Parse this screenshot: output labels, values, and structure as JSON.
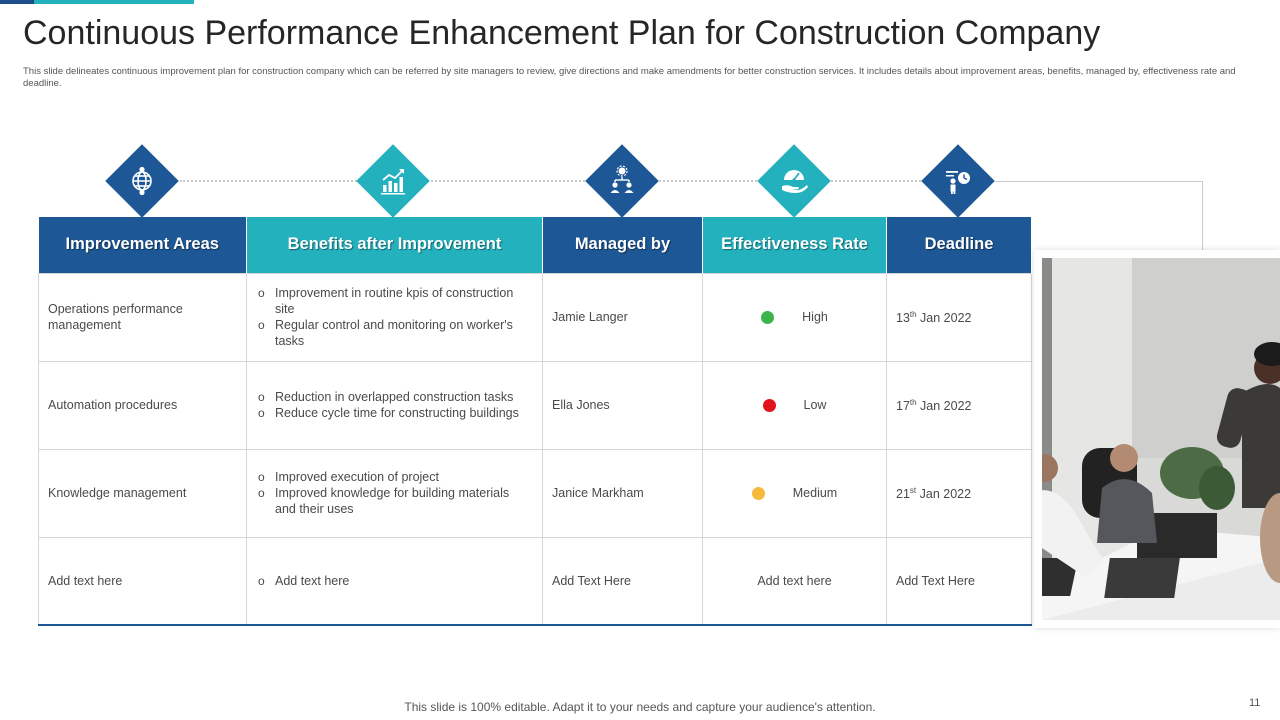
{
  "slide": {
    "title": "Continuous Performance Enhancement Plan for Construction Company",
    "subtitle": "This slide delineates continuous improvement plan for construction company which can be referred by site managers to review, give directions and make amendments  for better construction services. It includes details about improvement areas, benefits, managed by, effectiveness rate and deadline.",
    "footer": "This slide is 100% editable. Adapt it to your needs and capture your audience's attention.",
    "page_number": "11"
  },
  "icons": [
    "globe-icon",
    "growth-chart-icon",
    "team-hierarchy-icon",
    "gauge-hand-icon",
    "presenter-clock-icon"
  ],
  "colors": {
    "dark_blue": "#1d5795",
    "teal": "#23b1bd",
    "high": "#3cb44b",
    "low": "#e2141b",
    "medium": "#f6b93b"
  },
  "table": {
    "headers": [
      "Improvement Areas",
      "Benefits after Improvement",
      "Managed by",
      "Effectiveness  Rate",
      "Deadline"
    ],
    "rows": [
      {
        "area": "Operations performance  management",
        "benefits": [
          "Improvement  in routine kpis of construction site",
          "Regular control and monitoring on worker's tasks"
        ],
        "managed_by": "Jamie Langer",
        "rate": "High",
        "deadline_day": "13",
        "deadline_suffix": "th",
        "deadline_rest": " Jan 2022"
      },
      {
        "area": "Automation procedures",
        "benefits": [
          "Reduction in overlapped construction tasks",
          "Reduce cycle time for constructing buildings"
        ],
        "managed_by": "Ella Jones",
        "rate": "Low",
        "deadline_day": "17",
        "deadline_suffix": "th",
        "deadline_rest": " Jan 2022"
      },
      {
        "area": "Knowledge management",
        "benefits": [
          "Improved  execution of project",
          "Improved  knowledge for building materials and their uses"
        ],
        "managed_by": "Janice Markham",
        "rate": "Medium",
        "deadline_day": "21",
        "deadline_suffix": "st",
        "deadline_rest": " Jan 2022"
      },
      {
        "area": "Add text here",
        "benefits": [
          "Add text here"
        ],
        "managed_by": "Add Text Here",
        "rate": "Add text here",
        "deadline": "Add Text Here"
      }
    ]
  }
}
